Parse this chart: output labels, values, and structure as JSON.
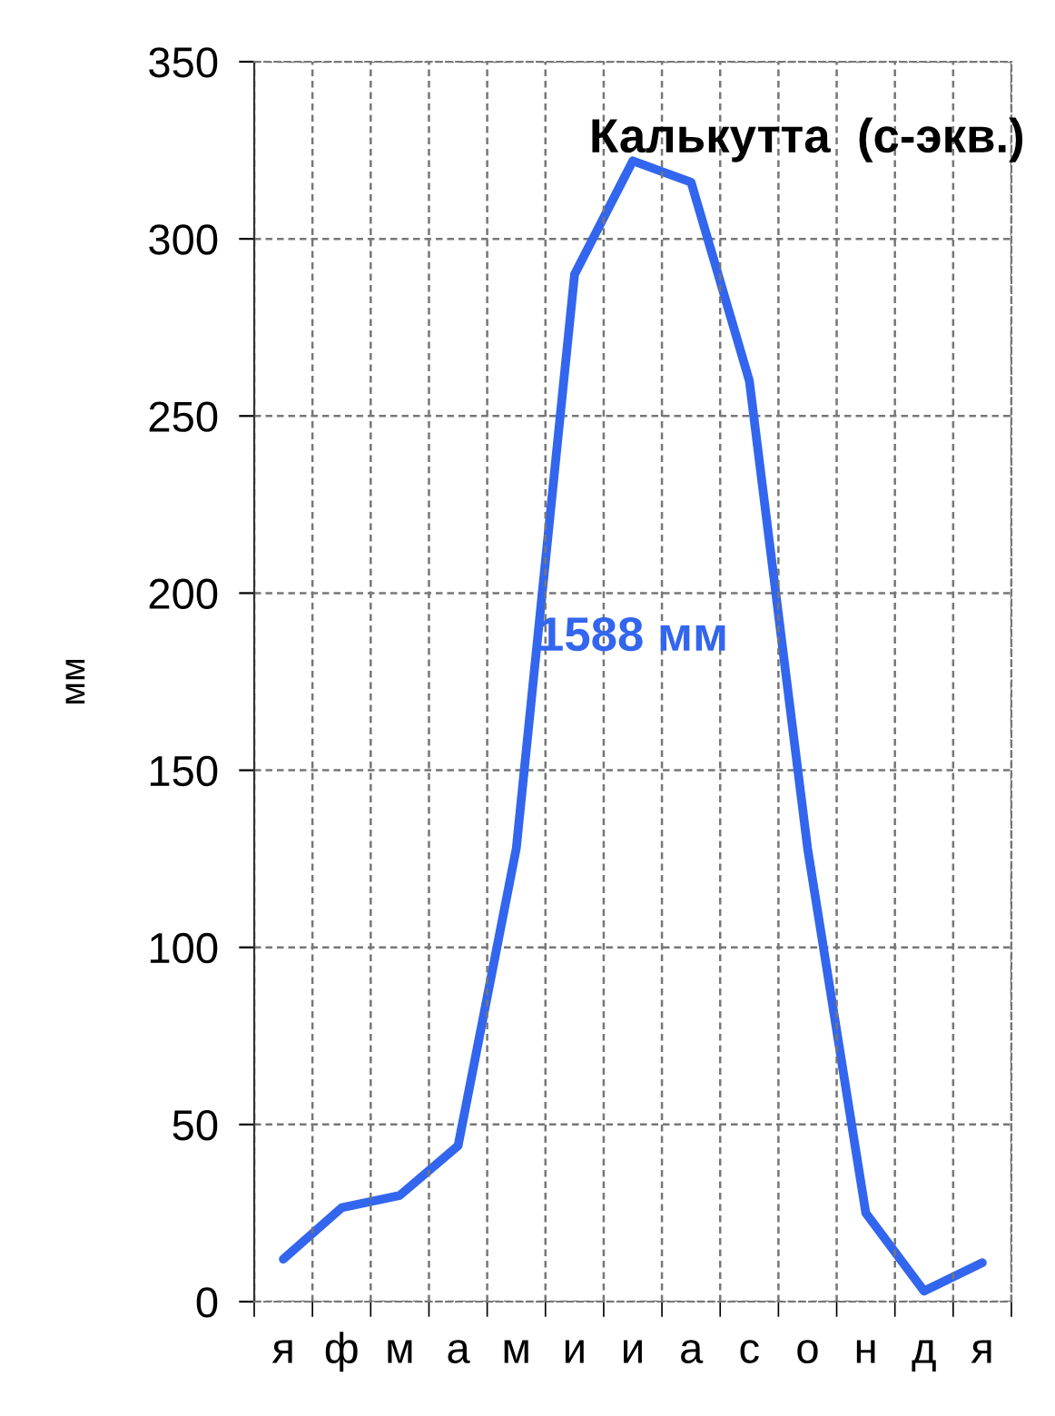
{
  "chart_data": {
    "type": "line",
    "title": "Калькутта  (с-экв.)",
    "ylabel": "мм",
    "categories": [
      "я",
      "ф",
      "м",
      "а",
      "м",
      "и",
      "и",
      "а",
      "с",
      "о",
      "н",
      "д",
      "я"
    ],
    "series": [
      {
        "color": "#3366ee",
        "values": [
          12,
          26.5,
          30,
          44,
          128,
          290,
          322,
          316,
          260,
          128,
          25,
          3,
          11
        ]
      }
    ],
    "annotations": [
      "1588 мм"
    ],
    "ylim": [
      0,
      350
    ],
    "yticks": [
      0,
      50,
      100,
      150,
      200,
      250,
      300,
      350
    ],
    "grid": true,
    "legend": false,
    "marker": "none",
    "line_style": "solid"
  }
}
